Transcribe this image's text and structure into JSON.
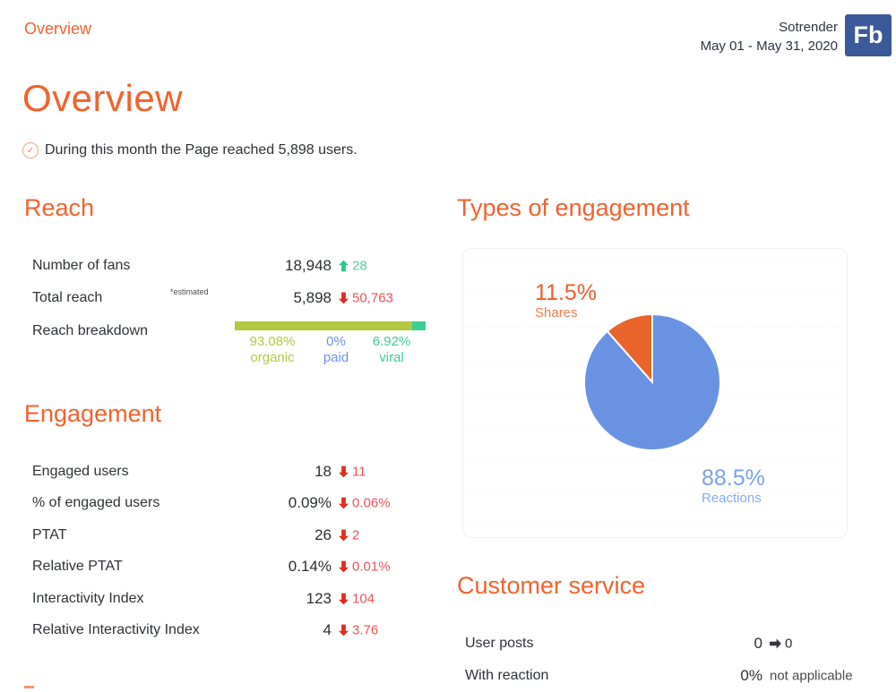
{
  "header": {
    "nav_title": "Overview",
    "brand": "Sotrender",
    "date_range": "May 01 - May 31, 2020",
    "logo_text": "Fb",
    "logo_color": "#3b5998"
  },
  "page": {
    "title": "Overview",
    "summary": "During this month the Page reached 5,898 users."
  },
  "reach": {
    "heading": "Reach",
    "rows": [
      {
        "label": "Number of fans",
        "value": "18,948",
        "change": "28",
        "direction": "up"
      },
      {
        "label": "Total reach",
        "note": "*estimated",
        "value": "5,898",
        "change": "50,763",
        "direction": "down"
      }
    ],
    "breakdown": {
      "label": "Reach breakdown",
      "segments": [
        {
          "name": "organic",
          "percent": "93.08%",
          "value": 93.08,
          "color": "#b4c83f"
        },
        {
          "name": "paid",
          "percent": "0%",
          "value": 0,
          "color": "#6e8fe8"
        },
        {
          "name": "viral",
          "percent": "6.92%",
          "value": 6.92,
          "color": "#3ecd92"
        }
      ]
    }
  },
  "engagement": {
    "heading": "Engagement",
    "rows": [
      {
        "label": "Engaged users",
        "value": "18",
        "change": "11",
        "direction": "down"
      },
      {
        "label": "% of engaged users",
        "value": "0.09%",
        "change": "0.06%",
        "direction": "down"
      },
      {
        "label": "PTAT",
        "value": "26",
        "change": "2",
        "direction": "down"
      },
      {
        "label": "Relative PTAT",
        "value": "0.14%",
        "change": "0.01%",
        "direction": "down"
      },
      {
        "label": "Interactivity Index",
        "value": "123",
        "change": "104",
        "direction": "down"
      },
      {
        "label": "Relative Interactivity Index",
        "value": "4",
        "change": "3.76",
        "direction": "down"
      }
    ]
  },
  "chart_data": {
    "type": "pie",
    "title": "Types of engagement",
    "slices": [
      {
        "label": "Shares",
        "percent": 11.5,
        "display": "11.5%",
        "color": "#e8642a"
      },
      {
        "label": "Reactions",
        "percent": 88.5,
        "display": "88.5%",
        "color": "#6992e2"
      }
    ],
    "legend_position": "outside-callouts"
  },
  "customer_service": {
    "heading": "Customer service",
    "rows": [
      {
        "label": "User posts",
        "value": "0",
        "change": "0",
        "direction": "same"
      },
      {
        "label": "With reaction",
        "value": "0%",
        "change": "not applicable",
        "direction": "none"
      }
    ]
  },
  "accent_colors": {
    "orange": "#f2622d",
    "positive_green": "#2ec982",
    "negative_red": "#e32b20",
    "text_dark": "#2f3136"
  }
}
